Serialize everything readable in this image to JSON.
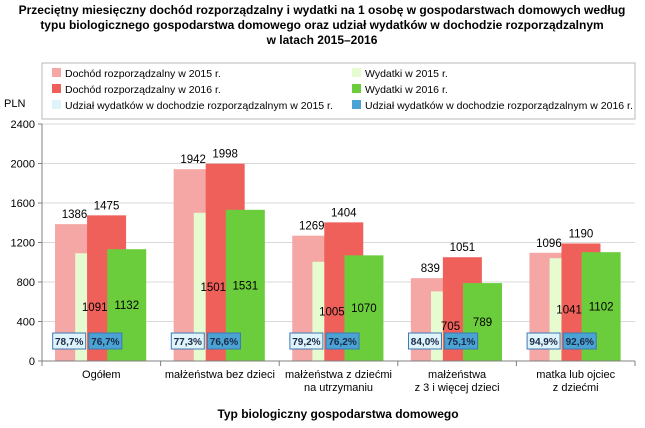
{
  "chart_data": {
    "type": "bar",
    "title_lines": [
      "Przeciętny miesięczny dochód rozporządzalny i wydatki na 1 osobę w gospodarstwach domowych według",
      "typu biologicznego gospodarstwa domowego oraz udział wydatków w dochodzie rozporządzalnym",
      "w latach 2015–2016"
    ],
    "ylabel": "PLN",
    "xlabel": "Typ biologiczny gospodarstwa domowego",
    "ylim": [
      0,
      2400
    ],
    "yticks": [
      "0",
      "400",
      "800",
      "1200",
      "1600",
      "2000",
      "2400"
    ],
    "grid": true,
    "legend_position": "top",
    "categories": [
      [
        "Ogółem"
      ],
      [
        "małżeństwa bez dzieci"
      ],
      [
        "małżeństwa z dziećmi",
        "na utrzymaniu"
      ],
      [
        "małżeństwa",
        "z 3 i więcej dzieci"
      ],
      [
        "matka lub ojciec",
        "z dziećmi"
      ]
    ],
    "series": [
      {
        "name": "Dochód rozporządzalny w 2015 r.",
        "color": "#f4a7a5",
        "values": [
          1386,
          1942,
          1269,
          839,
          1096
        ],
        "labels": [
          "1386",
          "1942",
          "1269",
          "839",
          "1096"
        ]
      },
      {
        "name": "Wydatki w 2015 r.",
        "color": "#e7fbd0",
        "values": [
          1091,
          1501,
          1005,
          705,
          1041
        ],
        "labels": [
          "1091",
          "1501",
          "1005",
          "705",
          "1041"
        ]
      },
      {
        "name": "Dochód rozporządzalny w 2016 r.",
        "color": "#f0605b",
        "values": [
          1475,
          1998,
          1404,
          1051,
          1190
        ],
        "labels": [
          "1475",
          "1998",
          "1404",
          "1051",
          "1190"
        ]
      },
      {
        "name": "Wydatki w 2016 r.",
        "color": "#6ccd3c",
        "values": [
          1132,
          1531,
          1070,
          789,
          1102
        ],
        "labels": [
          "1132",
          "1531",
          "1070",
          "789",
          "1102"
        ]
      }
    ],
    "share": [
      {
        "name": "Udział wydatków w dochodzie rozporządzalnym w 2015 r.",
        "color": "#dff3fb",
        "values": [
          "78,7%",
          "77,3%",
          "79,2%",
          "84,0%",
          "94,9%"
        ]
      },
      {
        "name": "Udział wydatków w dochodzie rozporządzalnym w 2016 r.",
        "color": "#4aa3d3",
        "values": [
          "76,7%",
          "76,6%",
          "76,2%",
          "75,1%",
          "92,6%"
        ]
      }
    ],
    "colors": {
      "frame": "#b8b8b8",
      "grid": "#d9d9d9",
      "axis": "#808080"
    }
  }
}
